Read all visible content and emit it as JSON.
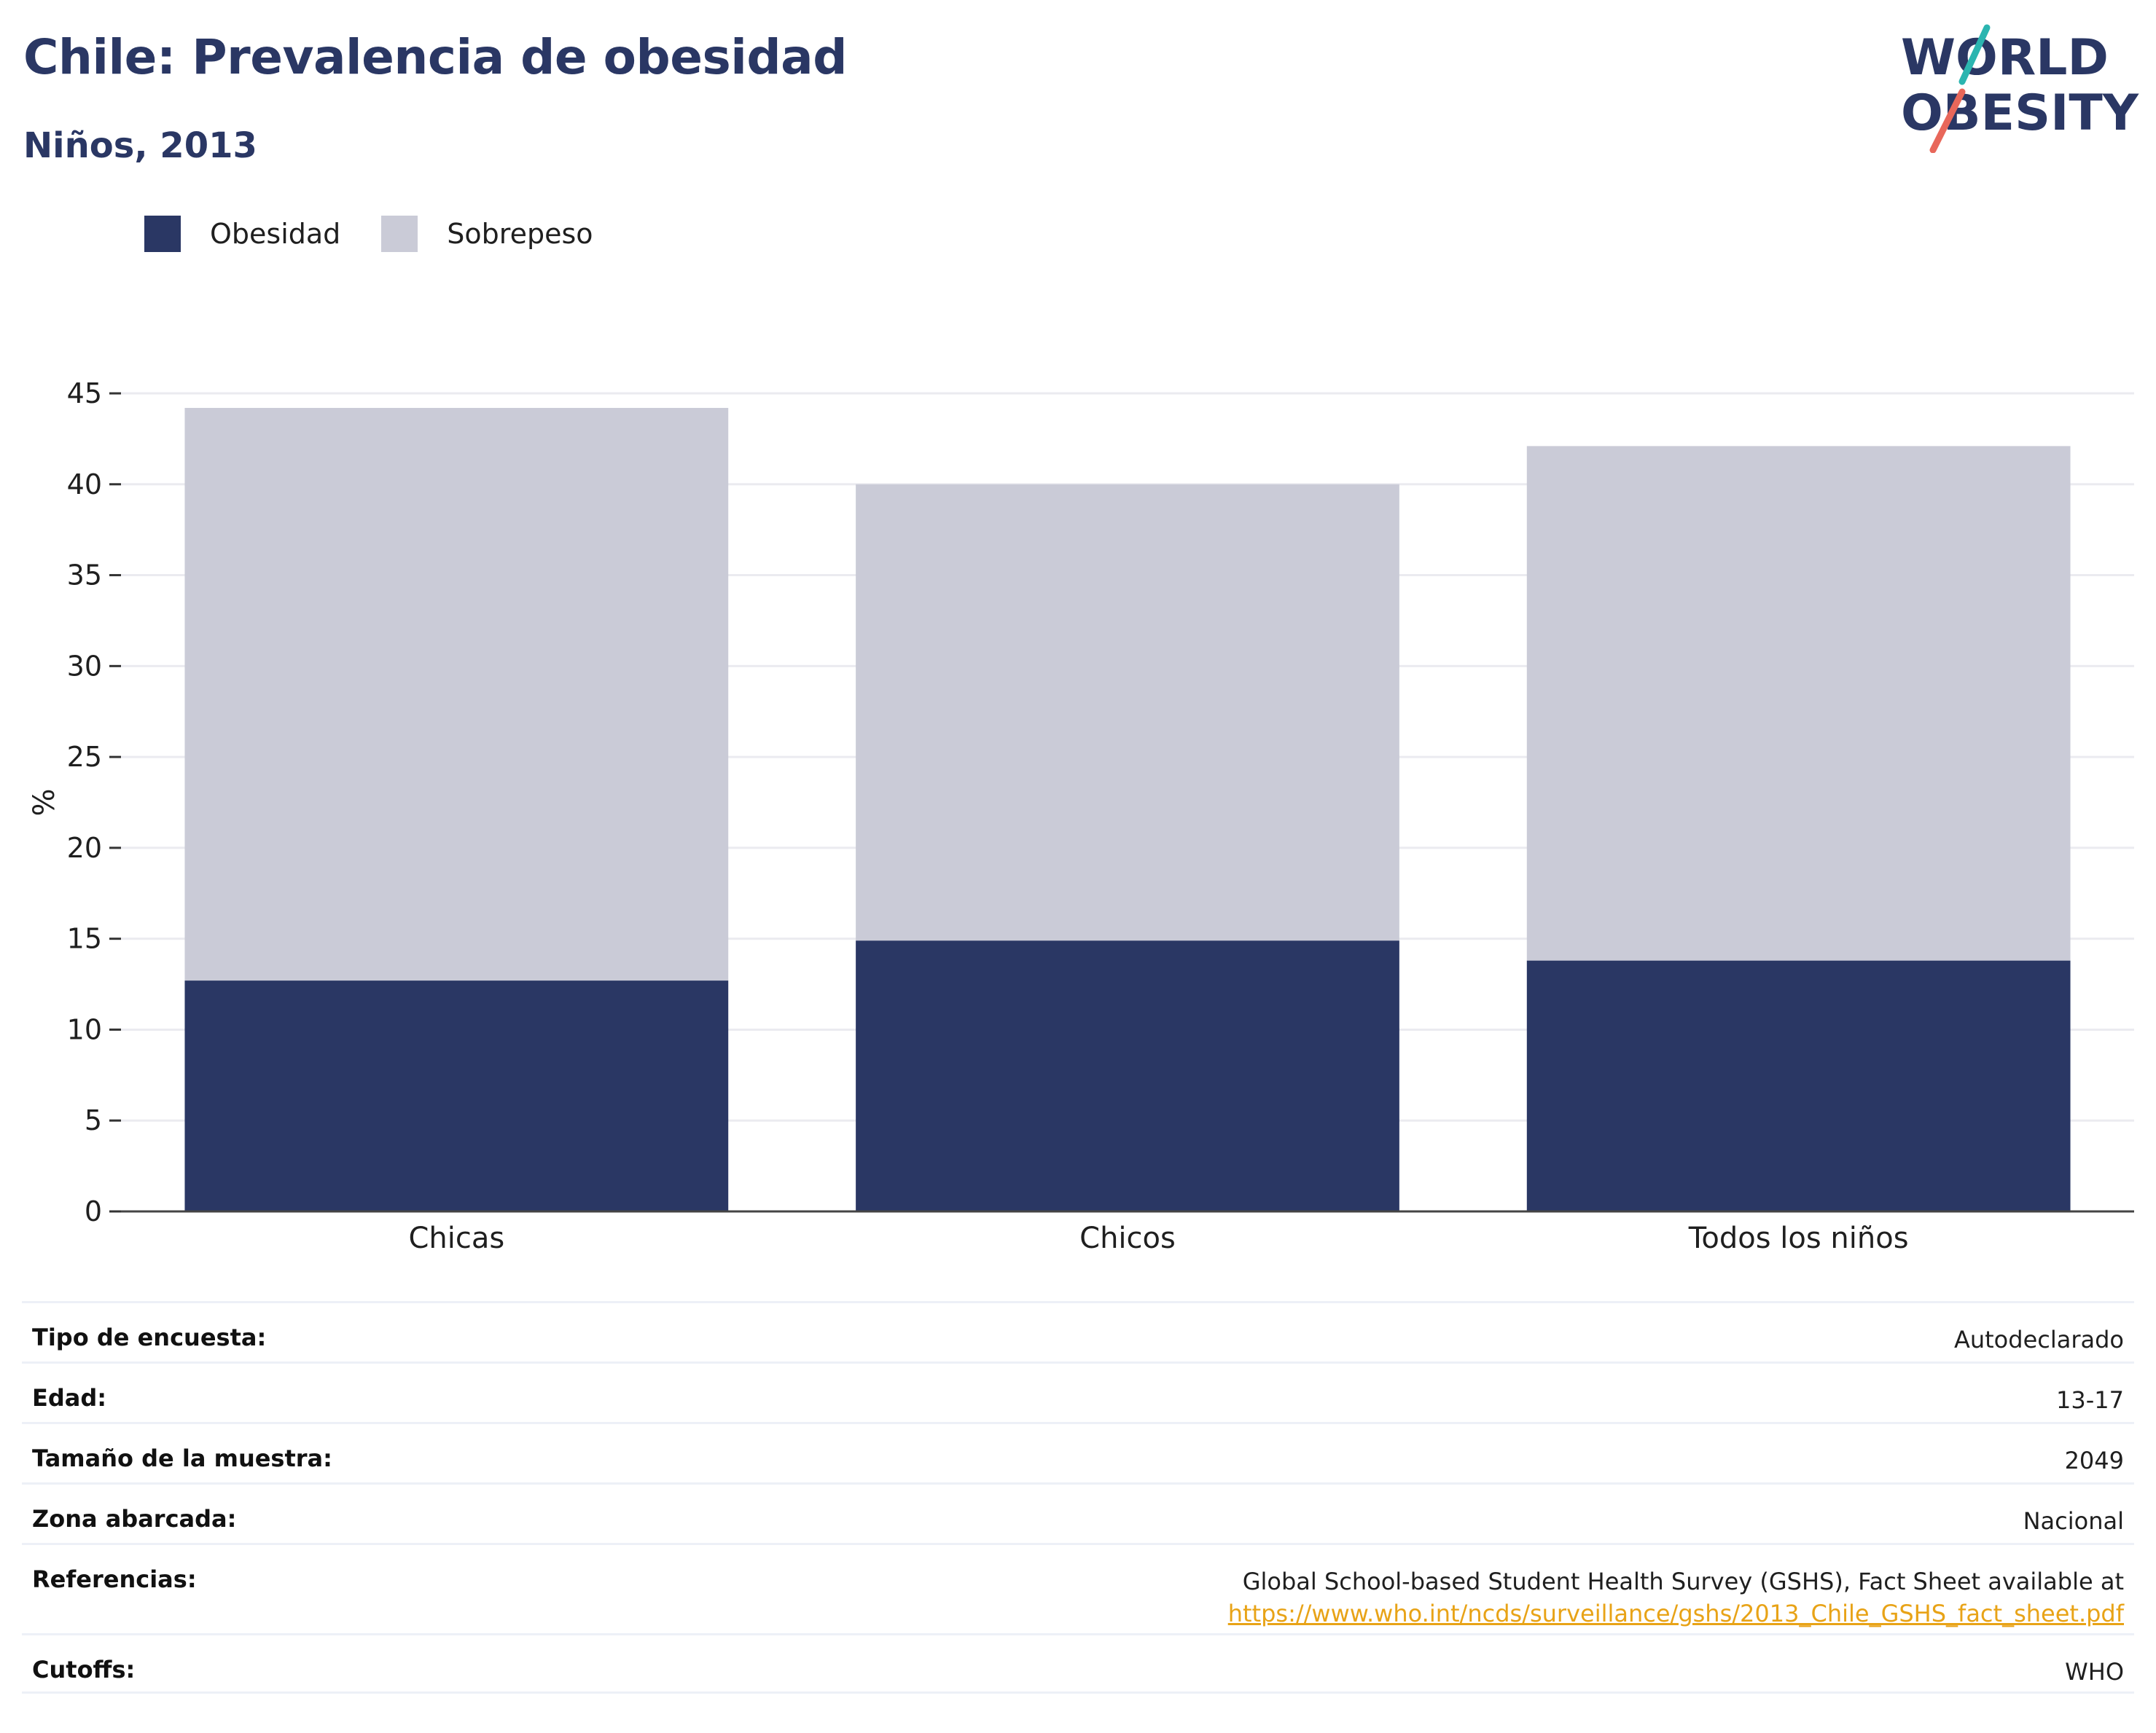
{
  "header": {
    "title": "Chile: Prevalencia de obesidad",
    "subtitle": "Niños, 2013"
  },
  "logo": {
    "line1": "WORLD",
    "line2": "OBESITY",
    "colors": {
      "text": "#2a3764",
      "slash_top": "#2bb5b0",
      "slash_bottom": "#e8675a"
    }
  },
  "legend": [
    {
      "label": "Obesidad",
      "color": "#2a3764"
    },
    {
      "label": "Sobrepeso",
      "color": "#cacbd7"
    }
  ],
  "chart_data": {
    "type": "bar",
    "stacked": true,
    "categories": [
      "Chicas",
      "Chicos",
      "Todos los niños"
    ],
    "series": [
      {
        "name": "Obesidad",
        "color": "#2a3764",
        "values": [
          12.7,
          14.9,
          13.8
        ]
      },
      {
        "name": "Sobrepeso",
        "color": "#cacbd7",
        "values": [
          31.5,
          25.1,
          28.3
        ]
      }
    ],
    "ylabel": "%",
    "ylim": [
      0,
      45
    ],
    "yticks": [
      0,
      5,
      10,
      15,
      20,
      25,
      30,
      35,
      40,
      45
    ],
    "grid": true,
    "legend_position": "top-left"
  },
  "info_table": [
    {
      "label": "Tipo de encuesta:",
      "value": "Autodeclarado"
    },
    {
      "label": "Edad:",
      "value": "13-17"
    },
    {
      "label": "Tamaño de la muestra:",
      "value": "2049"
    },
    {
      "label": "Zona abarcada:",
      "value": "Nacional"
    },
    {
      "label": "Referencias:",
      "value": "Global School-based Student Health Survey (GSHS), Fact Sheet available at",
      "link": "https://www.who.int/ncds/surveillance/gshs/2013_Chile_GSHS_fact_sheet.pdf"
    },
    {
      "label": "Cutoffs:",
      "value": "WHO"
    }
  ]
}
